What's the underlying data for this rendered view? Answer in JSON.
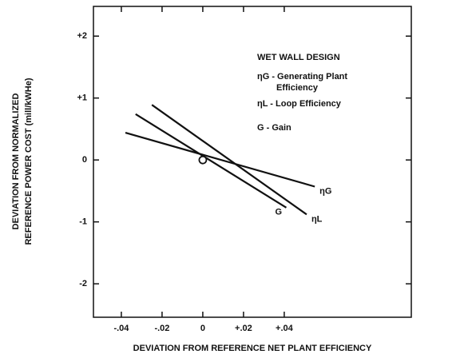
{
  "chart_data": {
    "type": "line",
    "x_label": "DEVIATION FROM REFERENCE NET PLANT EFFICIENCY",
    "y_label": [
      "DEVIATION FROM NORMALIZED",
      "REFERENCE POWER COST (mill/kWHe)"
    ],
    "annotations": [
      "WET WALL DESIGN",
      "ηG - Generating Plant",
      "Efficiency",
      "ηL - Loop Efficiency",
      "G - Gain"
    ],
    "series": [
      {
        "name": "ηG",
        "color": "#111111",
        "x": [
          -0.038,
          0.055
        ],
        "values": [
          0.44,
          -0.43
        ]
      },
      {
        "name": "ηL",
        "color": "#111111",
        "x": [
          -0.025,
          0.051
        ],
        "values": [
          0.89,
          -0.88
        ]
      },
      {
        "name": "G",
        "color": "#111111",
        "x": [
          -0.033,
          0.041
        ],
        "values": [
          0.74,
          -0.77
        ]
      }
    ],
    "xlim": [
      -0.0537,
      0.1024
    ],
    "xticks": [
      {
        "value": -0.04,
        "label": "-.04"
      },
      {
        "value": -0.02,
        "label": "-.02"
      },
      0,
      {
        "value": 0.02,
        "label": "+.02"
      },
      {
        "value": 0.04,
        "label": "+.04"
      }
    ],
    "ylim": [
      -2.54,
      2.48
    ],
    "yticks": [
      {
        "value": 2,
        "label": "+2"
      },
      {
        "value": 1,
        "label": "+1"
      },
      0,
      -1,
      -2
    ],
    "grid": false
  }
}
